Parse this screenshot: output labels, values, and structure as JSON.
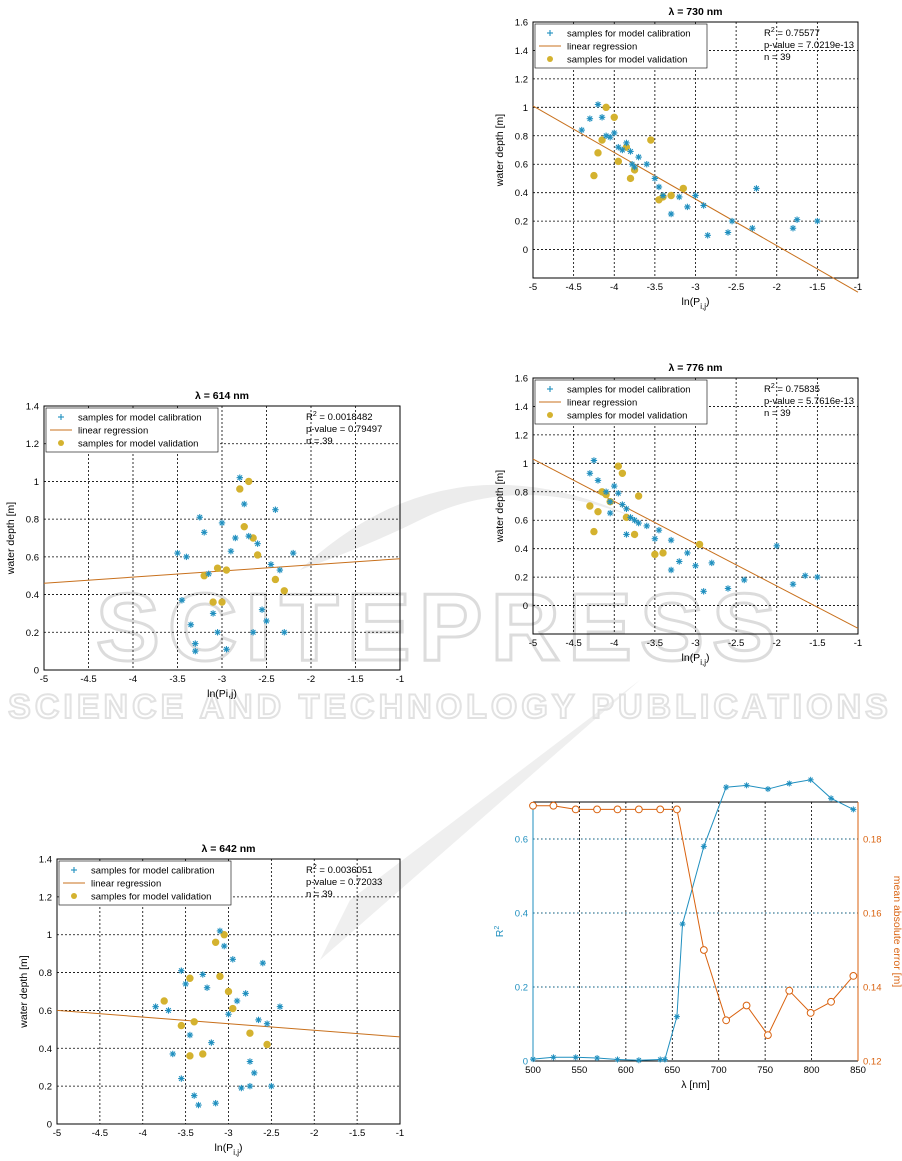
{
  "watermark": {
    "main": "SCITEPRESS",
    "sub": "SCIENCE AND TECHNOLOGY PUBLICATIONS",
    "color": "#d9d9d9"
  },
  "colors": {
    "calibration": "#1f8fbf",
    "regression": "#c8701c",
    "validation": "#d4b22f",
    "r2_line": "#1f8fbf",
    "mae_line": "#d9620f"
  },
  "chart_data": [
    {
      "type": "scatter",
      "title": "λ = 730 nm",
      "xlabel": "ln(P",
      "xlabel_sub": "i,j",
      "xlabel_close": ")",
      "ylabel": "water depth [m]",
      "xlim": [
        -5,
        -1
      ],
      "ylim": [
        -0.2,
        1.6
      ],
      "xticks": [
        -5,
        -4.5,
        -4,
        -3.5,
        -3,
        -2.5,
        -2,
        -1.5,
        -1
      ],
      "yticks": [
        0,
        0.2,
        0.4,
        0.6,
        0.8,
        1,
        1.2,
        1.4,
        1.6
      ],
      "legend": [
        "samples for model calibration",
        "linear regression",
        "samples for model validation"
      ],
      "stats": [
        "R",
        "2",
        " = 0.75577",
        "p-value = 7.0219e-13",
        "n = 39"
      ],
      "regression": [
        [
          -5,
          1.01
        ],
        [
          -1,
          -0.3
        ]
      ],
      "calibration": [
        [
          -4.4,
          0.84
        ],
        [
          -4.3,
          0.92
        ],
        [
          -4.2,
          1.02
        ],
        [
          -4.15,
          0.93
        ],
        [
          -4.1,
          0.8
        ],
        [
          -4.05,
          0.79
        ],
        [
          -4.0,
          0.82
        ],
        [
          -3.95,
          0.72
        ],
        [
          -3.9,
          0.7
        ],
        [
          -3.85,
          0.75
        ],
        [
          -3.8,
          0.69
        ],
        [
          -3.78,
          0.6
        ],
        [
          -3.75,
          0.58
        ],
        [
          -3.7,
          0.65
        ],
        [
          -3.6,
          0.6
        ],
        [
          -3.5,
          0.5
        ],
        [
          -3.45,
          0.44
        ],
        [
          -3.4,
          0.38
        ],
        [
          -3.3,
          0.25
        ],
        [
          -3.2,
          0.37
        ],
        [
          -3.1,
          0.3
        ],
        [
          -3.0,
          0.38
        ],
        [
          -2.9,
          0.31
        ],
        [
          -2.85,
          0.1
        ],
        [
          -2.6,
          0.12
        ],
        [
          -2.55,
          0.2
        ],
        [
          -2.3,
          0.15
        ],
        [
          -2.25,
          0.43
        ],
        [
          -1.8,
          0.15
        ],
        [
          -1.75,
          0.21
        ],
        [
          -1.5,
          0.2
        ]
      ],
      "validation": [
        [
          -4.25,
          0.52
        ],
        [
          -4.2,
          0.68
        ],
        [
          -4.15,
          0.77
        ],
        [
          -4.1,
          1.0
        ],
        [
          -4.0,
          0.93
        ],
        [
          -3.95,
          0.62
        ],
        [
          -3.85,
          0.72
        ],
        [
          -3.8,
          0.5
        ],
        [
          -3.75,
          0.56
        ],
        [
          -3.55,
          0.77
        ],
        [
          -3.45,
          0.35
        ],
        [
          -3.4,
          0.37
        ],
        [
          -3.3,
          0.38
        ],
        [
          -3.15,
          0.43
        ]
      ]
    },
    {
      "type": "scatter",
      "title": "λ = 614 nm",
      "xlabel": "ln(Pi,j)",
      "xlabel_sub": "",
      "xlabel_close": "",
      "ylabel": "water depth [m]",
      "xlim": [
        -5,
        -1
      ],
      "ylim": [
        0,
        1.4
      ],
      "xticks": [
        -5,
        -4.5,
        -4,
        -3.5,
        -3,
        -2.5,
        -2,
        -1.5,
        -1
      ],
      "yticks": [
        0,
        0.2,
        0.4,
        0.6,
        0.8,
        1,
        1.2,
        1.4
      ],
      "legend": [
        "samples for model calibration",
        "linear regression",
        "samples for model validation"
      ],
      "stats": [
        "R",
        "2",
        " = 0.0018482",
        "p-value = 0.79497",
        "n = 39"
      ],
      "regression": [
        [
          -5,
          0.46
        ],
        [
          -1,
          0.59
        ]
      ],
      "calibration": [
        [
          -3.5,
          0.62
        ],
        [
          -3.45,
          0.37
        ],
        [
          -3.4,
          0.6
        ],
        [
          -3.35,
          0.24
        ],
        [
          -3.3,
          0.14
        ],
        [
          -3.25,
          0.81
        ],
        [
          -3.2,
          0.73
        ],
        [
          -3.15,
          0.51
        ],
        [
          -3.1,
          0.3
        ],
        [
          -3.05,
          0.2
        ],
        [
          -3.0,
          0.78
        ],
        [
          -2.95,
          0.11
        ],
        [
          -2.9,
          0.63
        ],
        [
          -2.85,
          0.7
        ],
        [
          -2.8,
          1.02
        ],
        [
          -2.75,
          0.88
        ],
        [
          -2.7,
          0.71
        ],
        [
          -2.65,
          0.2
        ],
        [
          -2.6,
          0.67
        ],
        [
          -2.55,
          0.32
        ],
        [
          -2.5,
          0.26
        ],
        [
          -2.45,
          0.56
        ],
        [
          -2.4,
          0.85
        ],
        [
          -2.35,
          0.53
        ],
        [
          -2.3,
          0.2
        ],
        [
          -2.2,
          0.62
        ],
        [
          -3.3,
          0.1
        ]
      ],
      "validation": [
        [
          -3.2,
          0.5
        ],
        [
          -3.1,
          0.36
        ],
        [
          -3.05,
          0.54
        ],
        [
          -2.95,
          0.53
        ],
        [
          -2.8,
          0.96
        ],
        [
          -2.75,
          0.76
        ],
        [
          -2.7,
          1.0
        ],
        [
          -2.65,
          0.7
        ],
        [
          -2.6,
          0.61
        ],
        [
          -2.4,
          0.48
        ],
        [
          -2.3,
          0.42
        ],
        [
          -3.0,
          0.36
        ]
      ]
    },
    {
      "type": "scatter",
      "title": "λ = 776 nm",
      "xlabel": "ln(P",
      "xlabel_sub": "i,j",
      "xlabel_close": ")",
      "ylabel": "water depth [m]",
      "xlim": [
        -5,
        -1
      ],
      "ylim": [
        -0.2,
        1.6
      ],
      "xticks": [
        -5,
        -4.5,
        -4,
        -3.5,
        -3,
        -2.5,
        -2,
        -1.5,
        -1
      ],
      "yticks": [
        0,
        0.2,
        0.4,
        0.6,
        0.8,
        1,
        1.2,
        1.4,
        1.6
      ],
      "legend": [
        "samples for model calibration",
        "linear regression",
        "samples for model validation"
      ],
      "stats": [
        "R",
        "2",
        " = 0.75835",
        "p-value = 5.7616e-13",
        "n = 39"
      ],
      "regression": [
        [
          -5,
          1.03
        ],
        [
          -1,
          -0.16
        ]
      ],
      "calibration": [
        [
          -4.3,
          0.93
        ],
        [
          -4.25,
          1.02
        ],
        [
          -4.2,
          0.88
        ],
        [
          -4.1,
          0.8
        ],
        [
          -4.05,
          0.73
        ],
        [
          -4.0,
          0.84
        ],
        [
          -3.95,
          0.79
        ],
        [
          -3.9,
          0.71
        ],
        [
          -3.85,
          0.68
        ],
        [
          -3.8,
          0.62
        ],
        [
          -3.75,
          0.6
        ],
        [
          -3.7,
          0.58
        ],
        [
          -3.6,
          0.56
        ],
        [
          -3.5,
          0.47
        ],
        [
          -3.45,
          0.53
        ],
        [
          -3.3,
          0.46
        ],
        [
          -3.2,
          0.31
        ],
        [
          -3.1,
          0.37
        ],
        [
          -3.0,
          0.28
        ],
        [
          -2.9,
          0.1
        ],
        [
          -2.8,
          0.3
        ],
        [
          -2.6,
          0.12
        ],
        [
          -2.4,
          0.18
        ],
        [
          -2.0,
          0.42
        ],
        [
          -1.8,
          0.15
        ],
        [
          -1.65,
          0.21
        ],
        [
          -1.5,
          0.2
        ],
        [
          -3.3,
          0.25
        ],
        [
          -4.05,
          0.65
        ],
        [
          -3.85,
          0.5
        ]
      ],
      "validation": [
        [
          -4.3,
          0.7
        ],
        [
          -4.25,
          0.52
        ],
        [
          -4.2,
          0.66
        ],
        [
          -4.15,
          0.8
        ],
        [
          -4.1,
          0.78
        ],
        [
          -4.05,
          0.73
        ],
        [
          -3.95,
          0.98
        ],
        [
          -3.9,
          0.93
        ],
        [
          -3.85,
          0.62
        ],
        [
          -3.75,
          0.5
        ],
        [
          -3.5,
          0.36
        ],
        [
          -3.4,
          0.37
        ],
        [
          -2.95,
          0.43
        ],
        [
          -3.7,
          0.77
        ]
      ]
    },
    {
      "type": "scatter",
      "title": "λ = 642 nm",
      "xlabel": "ln(P",
      "xlabel_sub": "i,j",
      "xlabel_close": ")",
      "ylabel": "water depth [m]",
      "xlim": [
        -5,
        -1
      ],
      "ylim": [
        0,
        1.4
      ],
      "xticks": [
        -5,
        -4.5,
        -4,
        -3.5,
        -3,
        -2.5,
        -2,
        -1.5,
        -1
      ],
      "yticks": [
        0,
        0.2,
        0.4,
        0.6,
        0.8,
        1,
        1.2,
        1.4
      ],
      "legend": [
        "samples for model calibration",
        "linear regression",
        "samples for model validation"
      ],
      "stats": [
        "R",
        "2",
        " = 0.0036051",
        "p-value = 0.72033",
        "n = 39"
      ],
      "regression": [
        [
          -5,
          0.6
        ],
        [
          -1,
          0.46
        ]
      ],
      "calibration": [
        [
          -3.85,
          0.62
        ],
        [
          -3.7,
          0.6
        ],
        [
          -3.65,
          0.37
        ],
        [
          -3.55,
          0.81
        ],
        [
          -3.5,
          0.74
        ],
        [
          -3.45,
          0.47
        ],
        [
          -3.4,
          0.15
        ],
        [
          -3.35,
          0.1
        ],
        [
          -3.3,
          0.79
        ],
        [
          -3.25,
          0.72
        ],
        [
          -3.2,
          0.43
        ],
        [
          -3.15,
          0.11
        ],
        [
          -3.1,
          1.02
        ],
        [
          -3.05,
          0.94
        ],
        [
          -3.0,
          0.58
        ],
        [
          -2.95,
          0.87
        ],
        [
          -2.9,
          0.65
        ],
        [
          -2.85,
          0.19
        ],
        [
          -2.8,
          0.69
        ],
        [
          -2.75,
          0.33
        ],
        [
          -2.7,
          0.27
        ],
        [
          -2.65,
          0.55
        ],
        [
          -2.6,
          0.85
        ],
        [
          -2.55,
          0.53
        ],
        [
          -2.5,
          0.2
        ],
        [
          -2.4,
          0.62
        ],
        [
          -3.55,
          0.24
        ],
        [
          -2.75,
          0.2
        ]
      ],
      "validation": [
        [
          -3.75,
          0.65
        ],
        [
          -3.55,
          0.52
        ],
        [
          -3.45,
          0.36
        ],
        [
          -3.4,
          0.54
        ],
        [
          -3.3,
          0.37
        ],
        [
          -3.15,
          0.96
        ],
        [
          -3.1,
          0.78
        ],
        [
          -3.05,
          1.0
        ],
        [
          -3.0,
          0.7
        ],
        [
          -2.95,
          0.61
        ],
        [
          -2.75,
          0.48
        ],
        [
          -2.55,
          0.42
        ],
        [
          -3.45,
          0.77
        ]
      ]
    },
    {
      "type": "line",
      "xlabel": "λ [nm]",
      "ylabel_left": "R",
      "ylabel_left_sup": "2",
      "ylabel_right": "mean absolute error [m]",
      "xlim": [
        500,
        850
      ],
      "ylim_left": [
        0,
        0.7
      ],
      "ylim_right": [
        0.12,
        0.19
      ],
      "xticks": [
        500,
        550,
        600,
        650,
        700,
        750,
        800,
        850
      ],
      "yticks_left": [
        0,
        0.2,
        0.4,
        0.6
      ],
      "yticks_right": [
        0.12,
        0.14,
        0.16,
        0.18
      ],
      "series": [
        {
          "axis": "left",
          "x": [
            500,
            522,
            546,
            569,
            591,
            614,
            637,
            642,
            655,
            661,
            684,
            708,
            730,
            753,
            776,
            799,
            821,
            845
          ],
          "values": [
            0.005,
            0.01,
            0.01,
            0.008,
            0.004,
            0.002,
            0.004,
            0.004,
            0.12,
            0.37,
            0.58,
            0.74,
            0.745,
            0.735,
            0.75,
            0.76,
            0.71,
            0.68
          ]
        },
        {
          "axis": "right",
          "x": [
            500,
            522,
            546,
            569,
            591,
            614,
            637,
            655,
            684,
            708,
            730,
            753,
            776,
            799,
            821,
            845
          ],
          "values": [
            0.189,
            0.189,
            0.188,
            0.188,
            0.188,
            0.188,
            0.188,
            0.188,
            0.15,
            0.131,
            0.135,
            0.127,
            0.139,
            0.133,
            0.136,
            0.143
          ]
        }
      ]
    }
  ]
}
